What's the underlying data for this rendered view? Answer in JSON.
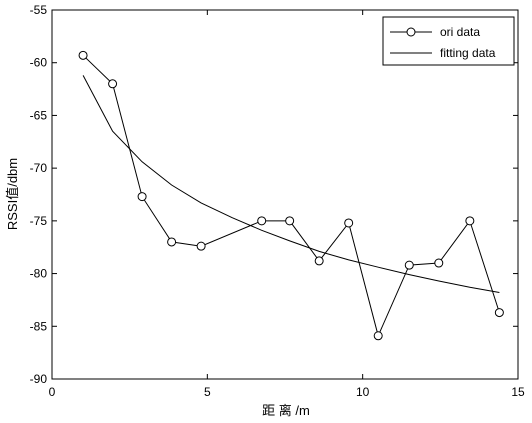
{
  "chart_data": {
    "type": "line",
    "title": "",
    "xlabel": "距 离 /m",
    "ylabel": "RSSI值/dbm",
    "xlim": [
      0,
      15
    ],
    "ylim": [
      -90,
      -55
    ],
    "xticks": [
      "0",
      "5",
      "10",
      "15"
    ],
    "yticks": [
      "-55",
      "-60",
      "-65",
      "-70",
      "-75",
      "-80",
      "-85",
      "-90"
    ],
    "grid": false,
    "legend_position": "top-right",
    "series": [
      {
        "name": "ori data",
        "style": "line-circle-markers",
        "color": "#000000",
        "x": [
          1,
          1.95,
          2.9,
          3.85,
          4.8,
          6.75,
          7.65,
          8.6,
          9.55,
          10.5,
          11.5,
          12.45,
          13.45,
          14.4
        ],
        "y": [
          -59.3,
          -62.0,
          -72.7,
          -77.0,
          -77.4,
          -75.0,
          -75.0,
          -78.8,
          -75.2,
          -85.9,
          -79.2,
          -79.0,
          -75.0,
          -83.7
        ]
      },
      {
        "name": "fitting data",
        "style": "line",
        "color": "#000000",
        "x": [
          1,
          1.95,
          2.9,
          3.85,
          4.8,
          5.8,
          6.75,
          7.65,
          8.6,
          9.55,
          10.5,
          11.5,
          12.45,
          13.45,
          14.4
        ],
        "y": [
          -61.2,
          -66.5,
          -69.4,
          -71.6,
          -73.3,
          -74.7,
          -75.9,
          -76.9,
          -77.9,
          -78.7,
          -79.4,
          -80.1,
          -80.7,
          -81.3,
          -81.8
        ]
      }
    ]
  }
}
